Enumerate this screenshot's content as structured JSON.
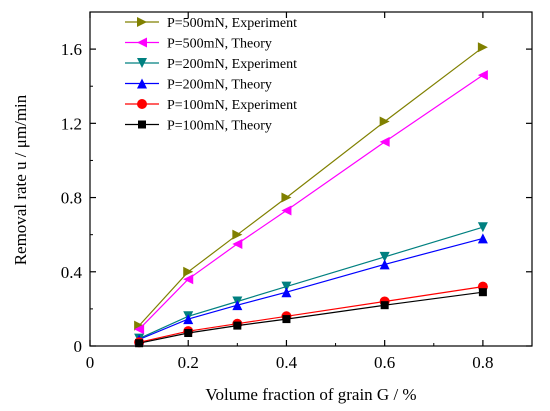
{
  "chart_data": {
    "type": "line",
    "xlabel": "Volume fraction of grain G  / %",
    "ylabel": "Removal rate  u /  μm/min",
    "xlim": [
      0,
      0.9
    ],
    "ylim": [
      0,
      1.8
    ],
    "x_ticks": [
      0,
      0.2,
      0.4,
      0.6,
      0.8
    ],
    "x_tick_labels": [
      "0",
      "0.2",
      "0.4",
      "0.6",
      "0.8"
    ],
    "y_ticks": [
      0,
      0.4,
      0.8,
      1.2,
      1.6
    ],
    "y_tick_labels": [
      "0",
      "0.4",
      "0.8",
      "1.2",
      "1.6"
    ],
    "legend_position": "top-left",
    "grid": false,
    "x": [
      0.1,
      0.2,
      0.3,
      0.4,
      0.6,
      0.8
    ],
    "series": [
      {
        "name": "P=500mN, Experiment",
        "color": "#808000",
        "marker": "triangle-right",
        "values": [
          0.11,
          0.4,
          0.6,
          0.8,
          1.21,
          1.61
        ]
      },
      {
        "name": "P=500mN, Theory",
        "color": "#ff00ff",
        "marker": "triangle-left",
        "values": [
          0.09,
          0.36,
          0.55,
          0.73,
          1.1,
          1.46
        ]
      },
      {
        "name": "P=200mN, Experiment",
        "color": "#008080",
        "marker": "triangle-down",
        "values": [
          0.04,
          0.16,
          0.24,
          0.32,
          0.48,
          0.64
        ]
      },
      {
        "name": "P=200mN, Theory",
        "color": "#0000ff",
        "marker": "triangle-up",
        "values": [
          0.035,
          0.145,
          0.22,
          0.29,
          0.44,
          0.58
        ]
      },
      {
        "name": "P=100mN, Experiment",
        "color": "#ff0000",
        "marker": "circle",
        "values": [
          0.02,
          0.08,
          0.12,
          0.16,
          0.24,
          0.32
        ]
      },
      {
        "name": "P=100mN, Theory",
        "color": "#000000",
        "marker": "square",
        "values": [
          0.015,
          0.07,
          0.11,
          0.145,
          0.22,
          0.29
        ]
      }
    ]
  }
}
